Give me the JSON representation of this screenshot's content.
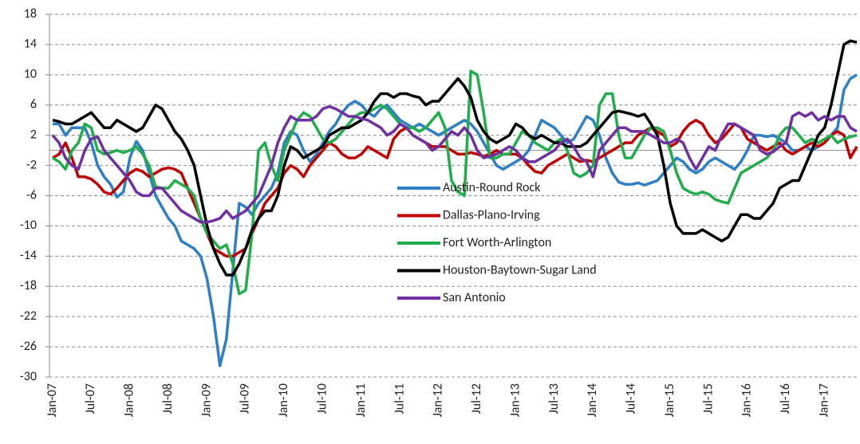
{
  "chart_data": {
    "type": "line",
    "categories": [
      "Jan-07",
      null,
      null,
      null,
      null,
      null,
      "Jul-07",
      null,
      null,
      null,
      null,
      null,
      "Jan-08",
      null,
      null,
      null,
      null,
      null,
      "Jul-08",
      null,
      null,
      null,
      null,
      null,
      "Jan-09",
      null,
      null,
      null,
      null,
      null,
      "Jul-09",
      null,
      null,
      null,
      null,
      null,
      "Jan-10",
      null,
      null,
      null,
      null,
      null,
      "Jul-10",
      null,
      null,
      null,
      null,
      null,
      "Jan-11",
      null,
      null,
      null,
      null,
      null,
      "Jul-11",
      null,
      null,
      null,
      null,
      null,
      "Jan-12",
      null,
      null,
      null,
      null,
      null,
      "Jul-12",
      null,
      null,
      null,
      null,
      null,
      "Jan-13",
      null,
      null,
      null,
      null,
      null,
      "Jul-13",
      null,
      null,
      null,
      null,
      null,
      "Jan-14",
      null,
      null,
      null,
      null,
      null,
      "Jul-14",
      null,
      null,
      null,
      null,
      null,
      "Jan-15",
      null,
      null,
      null,
      null,
      null,
      "Jul-15",
      null,
      null,
      null,
      null,
      null,
      "Jan-16",
      null,
      null,
      null,
      null,
      null,
      "Jul-16",
      null,
      null,
      null,
      null,
      null,
      "Jan-17",
      null,
      null,
      null,
      null,
      null
    ],
    "series": [
      {
        "name": "Austin-Round Rock",
        "color": "#2e7fc4",
        "values": [
          3.5,
          3.5,
          2,
          3,
          3,
          3,
          1,
          -2,
          -3.5,
          -4.5,
          -6.2,
          -5.5,
          -1,
          1.2,
          0,
          -3,
          -6,
          -7.5,
          -9,
          -10,
          -12,
          -12.5,
          -13,
          -14,
          -17,
          -22,
          -28.5,
          -25,
          -16,
          -7,
          -7.5,
          -8.5,
          -7,
          -6,
          -5,
          -3,
          1,
          2.5,
          2,
          0,
          -1.5,
          -0.5,
          1,
          2.5,
          3.5,
          5,
          6,
          6.5,
          6,
          5,
          4.5,
          5.5,
          6,
          5,
          4,
          3.5,
          3,
          3.5,
          3,
          2.5,
          2,
          2.5,
          3,
          3.5,
          4,
          3.5,
          2.5,
          1,
          -0.5,
          -2,
          -2.5,
          -2,
          -1.5,
          -1,
          0,
          2,
          4,
          3.5,
          3,
          2,
          1,
          1.5,
          3,
          4.5,
          4,
          2,
          -1,
          -3,
          -4.2,
          -4.5,
          -4.5,
          -4.3,
          -4.6,
          -4.3,
          -4,
          -3,
          -2,
          -1,
          -1.5,
          -2.5,
          -3,
          -2.5,
          -1.5,
          -1,
          -1.5,
          -2,
          -2.5,
          -1.5,
          0,
          2,
          2,
          1.8,
          2,
          1.5,
          1,
          0,
          0,
          0.5,
          0,
          0.5,
          1,
          2,
          3,
          8,
          9.5,
          10
        ]
      },
      {
        "name": "Dallas-Plano-Irving",
        "color": "#c00000",
        "values": [
          -1,
          -0.5,
          1,
          -1,
          -3.5,
          -3.5,
          -3.8,
          -4.5,
          -5.5,
          -5.8,
          -5,
          -4,
          -3,
          -2.5,
          -2.8,
          -3.5,
          -3,
          -2.5,
          -2.3,
          -2.5,
          -3,
          -5,
          -7,
          -9,
          -11,
          -13,
          -13.5,
          -14,
          -14,
          -13.5,
          -13,
          -11,
          -9,
          -7,
          -6,
          -5,
          -3,
          -2,
          -2.5,
          -3.5,
          -2,
          -1,
          0,
          1,
          0.5,
          -0.5,
          -1,
          -1,
          -0.5,
          0.5,
          0,
          -0.5,
          -1,
          1.5,
          2.5,
          3,
          2,
          1.5,
          1,
          0.5,
          0.5,
          0.5,
          0,
          -0.5,
          -0.5,
          -0.3,
          -0.5,
          -0.8,
          -0.5,
          0,
          -0.5,
          -0.5,
          -0.5,
          -1,
          -2,
          -2.8,
          -3,
          -2,
          -1.5,
          -1,
          -0.5,
          -1,
          -1.5,
          -1.3,
          -1.5,
          -1,
          -0.5,
          0,
          0.5,
          1,
          1,
          2,
          2.5,
          3,
          2.5,
          2,
          0.5,
          1,
          2.5,
          3.5,
          4,
          3.5,
          2,
          1,
          1.5,
          2.5,
          3.5,
          3,
          1.5,
          1,
          0.5,
          0,
          0.5,
          1,
          0,
          -0.5,
          0,
          0.5,
          1,
          0.5,
          1,
          2,
          2.5,
          2,
          -1,
          0.5
        ]
      },
      {
        "name": "Fort Worth-Arlington",
        "color": "#1fae4b",
        "values": [
          -1,
          -1.5,
          -2.5,
          0,
          1,
          3.5,
          3,
          0,
          -0.5,
          -0.3,
          0,
          -0.3,
          0,
          0.5,
          -0.5,
          -2,
          -4.8,
          -5,
          -5,
          -4,
          -4.5,
          -5,
          -6,
          -9,
          -11,
          -12,
          -13,
          -12.5,
          -15,
          -19,
          -18.5,
          -11,
          0,
          1,
          -2,
          -4,
          0,
          2,
          4,
          5,
          4.5,
          3,
          1.5,
          1,
          1.5,
          2.5,
          3.5,
          4.5,
          5,
          5,
          5.5,
          6,
          5.5,
          4.5,
          3.5,
          3,
          3,
          2.5,
          3,
          4,
          5,
          3,
          -4,
          -5.5,
          -6,
          10.5,
          10,
          5,
          -1,
          -1,
          -0.5,
          -0.5,
          1,
          2.5,
          2,
          1,
          0.5,
          0,
          1,
          1.5,
          0,
          -3,
          -3.5,
          -3,
          -2,
          6,
          7.5,
          7.5,
          2,
          -1,
          -1,
          0.5,
          2,
          3,
          3,
          2.5,
          0,
          -3,
          -5,
          -5.5,
          -5.8,
          -5.5,
          -5.8,
          -6.5,
          -6.8,
          -7,
          -5,
          -3,
          -2.5,
          -2,
          -1.5,
          -1,
          0,
          2,
          3,
          3,
          2,
          1,
          1.5,
          1,
          1.5,
          2,
          1,
          1.5,
          1.8,
          2
        ]
      },
      {
        "name": "Houston-Baytown-Sugar Land",
        "color": "#000000",
        "values": [
          4,
          3.8,
          3.5,
          3.5,
          4,
          4.5,
          5,
          4,
          3,
          3,
          4,
          3.5,
          3,
          2.5,
          3,
          4.5,
          6,
          5.5,
          4,
          2.5,
          1.5,
          0,
          -2,
          -6,
          -10,
          -13,
          -15,
          -16.5,
          -16.5,
          -15,
          -13,
          -10.5,
          -9,
          -8,
          -8,
          -6,
          -2,
          0.5,
          0,
          -1,
          -0.5,
          0,
          0.5,
          2,
          2.5,
          3,
          3,
          3.5,
          4,
          5,
          6.5,
          7.5,
          7.5,
          7,
          7.5,
          7.5,
          7.2,
          7,
          6,
          6.5,
          6.5,
          7.5,
          8.5,
          9.5,
          8.5,
          7,
          4,
          2.5,
          1.5,
          1,
          1.5,
          2,
          3.5,
          3,
          2,
          1.5,
          2,
          1.5,
          1,
          1,
          0.5,
          0.5,
          0.5,
          1,
          2,
          3,
          4,
          5,
          5.2,
          5,
          4.8,
          4.5,
          4.8,
          3.5,
          2,
          -2,
          -7,
          -10,
          -11,
          -11,
          -11,
          -10.5,
          -11,
          -11.5,
          -12,
          -11.5,
          -10,
          -8.5,
          -8.5,
          -9,
          -9,
          -8,
          -7,
          -5,
          -4.5,
          -4,
          -4,
          -2,
          0,
          2,
          3,
          6,
          10,
          14,
          14.5,
          14.3
        ]
      },
      {
        "name": "San Antonio",
        "color": "#7030a0",
        "values": [
          2,
          1,
          -1,
          -2,
          -2.5,
          0,
          1.5,
          1.8,
          0,
          -1,
          -2,
          -3,
          -4,
          -5.5,
          -6,
          -6,
          -5,
          -5,
          -6,
          -7,
          -8,
          -8.5,
          -9,
          -9.5,
          -9.5,
          -9.3,
          -9,
          -8,
          -9,
          -8.5,
          -8,
          -7,
          -6,
          -4,
          -2,
          1,
          3,
          4.5,
          4,
          4,
          4,
          4.5,
          5.5,
          5.8,
          5.5,
          5,
          4.5,
          4.5,
          4.2,
          4,
          3.5,
          3,
          2,
          2.5,
          3.5,
          3,
          2,
          1.5,
          1,
          0,
          0.5,
          1.5,
          2.5,
          2,
          3,
          2,
          0,
          -1,
          -0.8,
          -0.5,
          0,
          0.5,
          0,
          -1,
          -1.5,
          -1.5,
          -1,
          -0.5,
          0,
          1,
          1.5,
          0.5,
          -1,
          -1.5,
          -3.5,
          0,
          1,
          2,
          3,
          3,
          2.5,
          2.5,
          2.5,
          2,
          1.5,
          1,
          1,
          1.5,
          1,
          -1,
          -2.5,
          -1,
          0.5,
          0,
          2,
          3.5,
          3.5,
          3,
          2.5,
          2,
          0,
          -0.5,
          -0.2,
          0.5,
          1,
          4.5,
          5,
          4.5,
          5,
          4,
          4.5,
          4,
          4.5,
          4.5,
          3,
          2.5
        ]
      }
    ],
    "ylim": [
      -30,
      18
    ],
    "yticks": [
      18,
      14,
      10,
      6,
      2,
      -2,
      -6,
      -10,
      -14,
      -18,
      -22,
      -26,
      -30
    ],
    "grid": true,
    "legend": "center"
  }
}
